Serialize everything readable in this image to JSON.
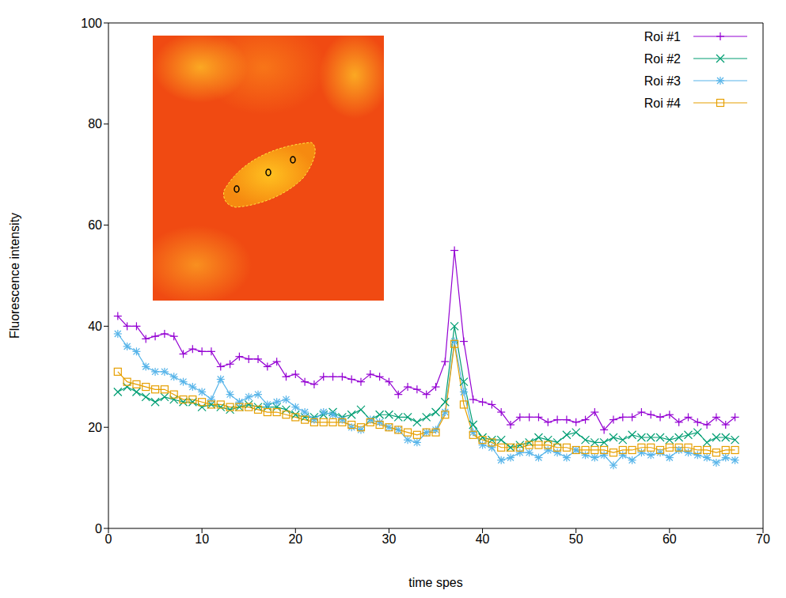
{
  "chart_data": {
    "type": "line",
    "xlabel": "time spes",
    "ylabel": "Fluorescence intensity",
    "x": [
      1,
      2,
      3,
      4,
      5,
      6,
      7,
      8,
      9,
      10,
      11,
      12,
      13,
      14,
      15,
      16,
      17,
      18,
      19,
      20,
      21,
      22,
      23,
      24,
      25,
      26,
      27,
      28,
      29,
      30,
      31,
      32,
      33,
      34,
      35,
      36,
      37,
      38,
      39,
      40,
      41,
      42,
      43,
      44,
      45,
      46,
      47,
      48,
      49,
      50,
      51,
      52,
      53,
      54,
      55,
      56,
      57,
      58,
      59,
      60,
      61,
      62,
      63,
      64,
      65,
      66,
      67
    ],
    "xlim": [
      0,
      70
    ],
    "xticks": [
      0,
      10,
      20,
      30,
      40,
      50,
      60,
      70
    ],
    "ylim": [
      0,
      100
    ],
    "yticks": [
      0,
      20,
      40,
      60,
      80,
      100
    ],
    "grid": false,
    "legend": "top-right",
    "series": [
      {
        "name": "Roi #1",
        "color": "#9400d3",
        "marker": "plus",
        "values": [
          42,
          40,
          40,
          37.5,
          38,
          38.5,
          38,
          34.5,
          35.5,
          35,
          35,
          32,
          32.5,
          34,
          33.5,
          33.5,
          32,
          33,
          30,
          30.5,
          29,
          28.5,
          30,
          30,
          30,
          29.5,
          29,
          30.5,
          30,
          29,
          26.5,
          28,
          27.5,
          26.5,
          28,
          33,
          55,
          37,
          25.5,
          25,
          24.5,
          23,
          20.5,
          22,
          22,
          22,
          21,
          21.5,
          21.5,
          21,
          21.5,
          23,
          19.5,
          21.5,
          22,
          22,
          23,
          22.5,
          22,
          22.5,
          21,
          22,
          21,
          20.5,
          22,
          20.5,
          22
        ]
      },
      {
        "name": "Roi #2",
        "color": "#009e73",
        "marker": "cross",
        "values": [
          27,
          28,
          27,
          26,
          25,
          26,
          25.5,
          25,
          25,
          24,
          24.5,
          24,
          23.5,
          24,
          24.5,
          24,
          24,
          24,
          23.5,
          22.5,
          22,
          22,
          22.5,
          23,
          22,
          22.5,
          23.5,
          21.5,
          22.5,
          22.5,
          22,
          22,
          21,
          22,
          23,
          25,
          40,
          29,
          20.5,
          18,
          17.5,
          17.5,
          16,
          16.5,
          17,
          18,
          17.5,
          17,
          18.5,
          19,
          17.5,
          17,
          17,
          18,
          17.5,
          18.5,
          18,
          18,
          18,
          17.5,
          18,
          18.5,
          19,
          17,
          18,
          18,
          17.5
        ]
      },
      {
        "name": "Roi #3",
        "color": "#56b4e9",
        "marker": "star",
        "values": [
          38.5,
          36,
          35,
          32,
          31,
          31,
          30,
          29,
          28,
          27,
          25.5,
          29.5,
          26.5,
          25,
          26,
          26.5,
          24.5,
          25,
          25.5,
          24,
          23,
          21.5,
          23,
          22.5,
          21.5,
          20,
          19.5,
          21.5,
          21,
          20,
          19.5,
          17.5,
          17,
          19,
          19.5,
          23,
          37,
          27,
          19,
          16.5,
          16,
          13.5,
          14,
          15,
          15,
          14,
          15.5,
          15,
          14,
          15.5,
          14.5,
          14,
          14.5,
          12.5,
          14.5,
          13.5,
          15,
          14.5,
          15,
          14,
          15.5,
          15,
          14.5,
          14,
          13,
          14,
          13.5
        ]
      },
      {
        "name": "Roi #4",
        "color": "#e69f00",
        "marker": "square",
        "values": [
          31,
          29,
          28.5,
          28,
          27.5,
          27.5,
          26.5,
          25.5,
          25.5,
          25,
          24.5,
          24.5,
          24,
          24,
          24,
          23.5,
          23,
          23,
          22.5,
          22,
          21.5,
          21,
          21,
          21,
          21,
          20.5,
          20,
          21,
          20.5,
          20,
          19.5,
          19,
          18.5,
          19,
          19,
          22.5,
          36.5,
          24.5,
          18.5,
          17.5,
          17,
          16,
          16,
          16,
          16.5,
          16.5,
          16.5,
          16,
          16,
          15.5,
          15.5,
          15.5,
          15.5,
          15,
          15.5,
          15.5,
          16,
          16,
          15.5,
          16,
          16,
          16,
          15.5,
          15.5,
          15,
          15.5,
          15.5
        ]
      }
    ]
  }
}
